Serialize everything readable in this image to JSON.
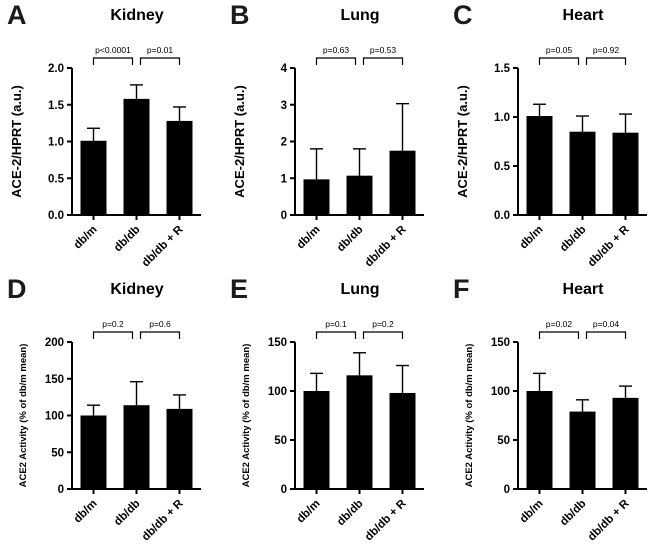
{
  "figure": {
    "background": "#ffffff",
    "bar_color": "#000000",
    "axis_color": "#000000",
    "text_color": "#000000",
    "letter_color": "#1c1c1c"
  },
  "chart_data": [
    {
      "type": "bar",
      "panel_label": "A",
      "title": "Kidney",
      "xlabel": "",
      "ylabel": "ACE-2/HPRT (a.u.)",
      "categories": [
        "db/m",
        "db/db",
        "db/db + R"
      ],
      "values": [
        1.01,
        1.58,
        1.28
      ],
      "errors_upper": [
        0.17,
        0.19,
        0.19
      ],
      "ylim": [
        0,
        2.0
      ],
      "ytick_values": [
        0,
        0.5,
        1.0,
        1.5,
        2.0
      ],
      "ytick_labels": [
        "0.0",
        "0.5",
        "1.0",
        "1.5",
        "2.0"
      ],
      "grid": false,
      "legend": null,
      "comparisons": [
        {
          "from": 0,
          "to": 1,
          "label": "p<0.0001"
        },
        {
          "from": 1,
          "to": 2,
          "label": "p=0.01"
        }
      ]
    },
    {
      "type": "bar",
      "panel_label": "B",
      "title": "Lung",
      "xlabel": "",
      "ylabel": "ACE-2/HPRT (a.u.)",
      "categories": [
        "db/m",
        "db/db",
        "db/db + R"
      ],
      "values": [
        0.97,
        1.07,
        1.75
      ],
      "errors_upper": [
        0.83,
        0.73,
        1.28
      ],
      "ylim": [
        0,
        4
      ],
      "ytick_values": [
        0,
        1,
        2,
        3,
        4
      ],
      "ytick_labels": [
        "0",
        "1",
        "2",
        "3",
        "4"
      ],
      "grid": false,
      "legend": null,
      "comparisons": [
        {
          "from": 0,
          "to": 1,
          "label": "p=0.63"
        },
        {
          "from": 1,
          "to": 2,
          "label": "p=0.53"
        }
      ]
    },
    {
      "type": "bar",
      "panel_label": "C",
      "title": "Heart",
      "xlabel": "",
      "ylabel": "ACE-2/HPRT (a.u.)",
      "categories": [
        "db/m",
        "db/db",
        "db/db + R"
      ],
      "values": [
        1.01,
        0.85,
        0.84
      ],
      "errors_upper": [
        0.12,
        0.16,
        0.19
      ],
      "ylim": [
        0,
        1.5
      ],
      "ytick_values": [
        0,
        0.5,
        1.0,
        1.5
      ],
      "ytick_labels": [
        "0.0",
        "0.5",
        "1.0",
        "1.5"
      ],
      "grid": false,
      "legend": null,
      "comparisons": [
        {
          "from": 0,
          "to": 1,
          "label": "p=0.05"
        },
        {
          "from": 1,
          "to": 2,
          "label": "p=0.92"
        }
      ]
    },
    {
      "type": "bar",
      "panel_label": "D",
      "title": "Kidney",
      "xlabel": "",
      "ylabel": "ACE2 Activity (% of db/m mean)",
      "categories": [
        "db/m",
        "db/db",
        "db/db + R"
      ],
      "values": [
        100,
        114,
        109
      ],
      "errors_upper": [
        14,
        32,
        19
      ],
      "ylim": [
        0,
        200
      ],
      "ytick_values": [
        0,
        50,
        100,
        150,
        200
      ],
      "ytick_labels": [
        "0",
        "50",
        "100",
        "150",
        "200"
      ],
      "grid": false,
      "legend": null,
      "comparisons": [
        {
          "from": 0,
          "to": 1,
          "label": "p=0.2"
        },
        {
          "from": 1,
          "to": 2,
          "label": "p=0.6"
        }
      ]
    },
    {
      "type": "bar",
      "panel_label": "E",
      "title": "Lung",
      "xlabel": "",
      "ylabel": "ACE2 Activity (% of db/m mean)",
      "categories": [
        "db/m",
        "db/db",
        "db/db + R"
      ],
      "values": [
        100,
        116,
        98
      ],
      "errors_upper": [
        18,
        23,
        28
      ],
      "ylim": [
        0,
        150
      ],
      "ytick_values": [
        0,
        50,
        100,
        150
      ],
      "ytick_labels": [
        "0",
        "50",
        "100",
        "150"
      ],
      "grid": false,
      "legend": null,
      "comparisons": [
        {
          "from": 0,
          "to": 1,
          "label": "p=0.1"
        },
        {
          "from": 1,
          "to": 2,
          "label": "p=0.2"
        }
      ]
    },
    {
      "type": "bar",
      "panel_label": "F",
      "title": "Heart",
      "xlabel": "",
      "ylabel": "ACE2 Activity (% of db/m mean)",
      "categories": [
        "db/m",
        "db/db",
        "db/db + R"
      ],
      "values": [
        100,
        79,
        93
      ],
      "errors_upper": [
        18,
        12,
        12
      ],
      "ylim": [
        0,
        150
      ],
      "ytick_values": [
        0,
        50,
        100,
        150
      ],
      "ytick_labels": [
        "0",
        "50",
        "100",
        "150"
      ],
      "grid": false,
      "legend": null,
      "comparisons": [
        {
          "from": 0,
          "to": 1,
          "label": "p=0.02"
        },
        {
          "from": 1,
          "to": 2,
          "label": "p=0.04"
        }
      ]
    }
  ]
}
